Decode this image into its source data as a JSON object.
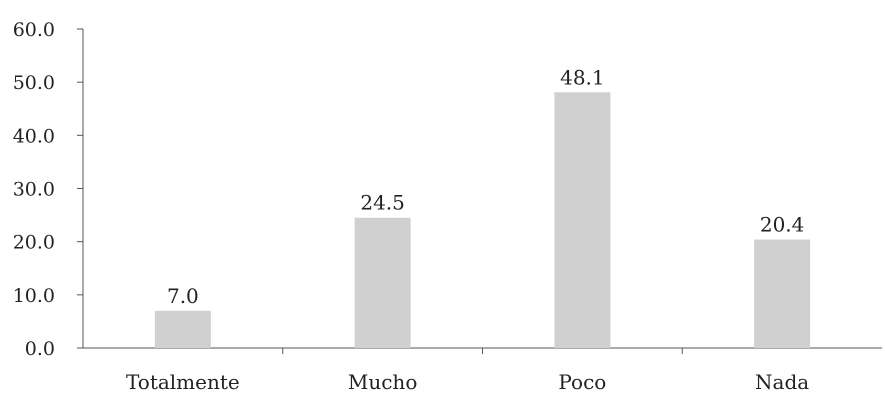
{
  "chart_data": {
    "type": "bar",
    "categories": [
      "Totalmente",
      "Mucho",
      "Poco",
      "Nada"
    ],
    "values": [
      7.0,
      24.5,
      48.1,
      20.4
    ],
    "data_labels": [
      "7.0",
      "24.5",
      "48.1",
      "20.4"
    ],
    "yticks": [
      0,
      10,
      20,
      30,
      40,
      50,
      60
    ],
    "ytick_labels": [
      "0.0",
      "10.0",
      "20.0",
      "30.0",
      "40.0",
      "50.0",
      "60.0"
    ],
    "ylim": [
      0,
      60
    ],
    "title": "",
    "xlabel": "",
    "ylabel": "",
    "grid": false,
    "legend": "none",
    "bar_color": "#d0d0d0"
  }
}
